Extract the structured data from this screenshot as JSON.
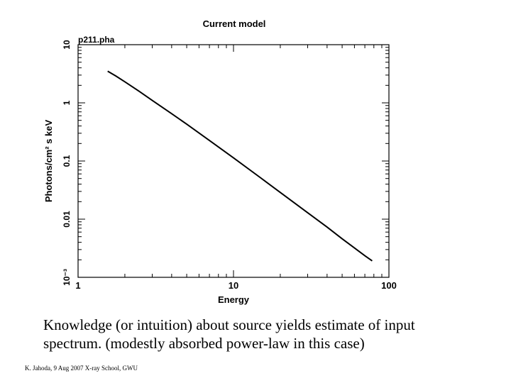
{
  "chart_data": {
    "type": "line",
    "title": "Current model",
    "subtitle": "p211.pha",
    "xlabel": "Energy",
    "ylabel": "Photons/cm² s keV",
    "xscale": "log",
    "yscale": "log",
    "xlim": [
      1,
      100
    ],
    "ylim": [
      0.001,
      10
    ],
    "x_ticks": [
      {
        "value": 1,
        "label": "1"
      },
      {
        "value": 10,
        "label": "10"
      },
      {
        "value": 100,
        "label": "100"
      }
    ],
    "y_ticks": [
      {
        "value": 0.001,
        "label": "10⁻³"
      },
      {
        "value": 0.01,
        "label": "0.01"
      },
      {
        "value": 0.1,
        "label": "0.1"
      },
      {
        "value": 1,
        "label": "1"
      },
      {
        "value": 10,
        "label": "10"
      }
    ],
    "grid": false,
    "series": [
      {
        "x": [
          1.55,
          1.75,
          2.0,
          2.5,
          3.0,
          4.0,
          5.0,
          7.0,
          10.0,
          15.0,
          20.0,
          30.0,
          40.0,
          50.0,
          60.0,
          70.0,
          78.0
        ],
        "y": [
          3.5,
          2.9,
          2.3,
          1.55,
          1.1,
          0.65,
          0.43,
          0.225,
          0.113,
          0.051,
          0.0288,
          0.0129,
          0.0073,
          0.0046,
          0.0032,
          0.00235,
          0.00192
        ]
      }
    ]
  },
  "caption": "Knowledge (or intuition) about source yields estimate of input spectrum. (modestly absorbed power-law in this case)",
  "footer": "K. Jahoda, 9 Aug 2007 X-ray School, GWU"
}
